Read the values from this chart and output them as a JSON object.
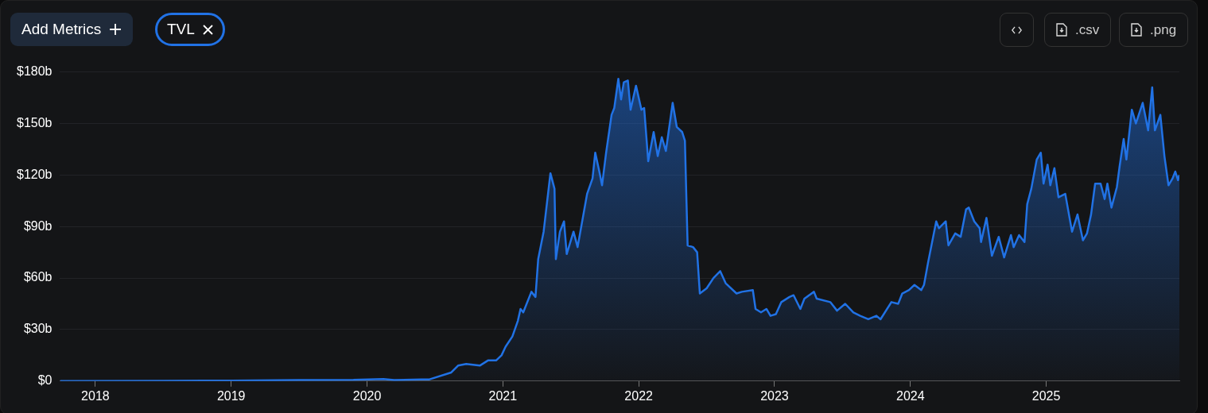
{
  "chart_data": {
    "type": "area",
    "annotations": [
      "Add Metrics",
      ".csv",
      ".png"
    ],
    "legend": "top left",
    "grid": "y",
    "xlim": [
      2017.74,
      2025.98
    ],
    "xticks": [
      2018,
      2019,
      2020,
      2021,
      2022,
      2023,
      2024,
      2025
    ],
    "ylim": [
      0,
      180
    ],
    "yticks": [
      {
        "value": 0,
        "label": "$0"
      },
      {
        "value": 30,
        "label": "$30b"
      },
      {
        "value": 60,
        "label": "$60b"
      },
      {
        "value": 90,
        "label": "$90b"
      },
      {
        "value": 120,
        "label": "$120b"
      },
      {
        "value": 150,
        "label": "$150b"
      },
      {
        "value": 180,
        "label": "$180b"
      }
    ],
    "x": [
      2017.74,
      2018.5,
      2019.0,
      2019.5,
      2019.9,
      2020.12,
      2020.2,
      2020.4,
      2020.46,
      2020.62,
      2020.67,
      2020.73,
      2020.83,
      2020.89,
      2020.95,
      2020.99,
      2021.02,
      2021.07,
      2021.11,
      2021.13,
      2021.15,
      2021.21,
      2021.24,
      2021.26,
      2021.3,
      2021.35,
      2021.38,
      2021.39,
      2021.42,
      2021.45,
      2021.47,
      2021.52,
      2021.55,
      2021.62,
      2021.66,
      2021.68,
      2021.71,
      2021.73,
      2021.76,
      2021.8,
      2021.82,
      2021.85,
      2021.87,
      2021.89,
      2021.92,
      2021.94,
      2021.98,
      2022.02,
      2022.04,
      2022.07,
      2022.11,
      2022.14,
      2022.17,
      2022.2,
      2022.25,
      2022.28,
      2022.32,
      2022.34,
      2022.36,
      2022.4,
      2022.43,
      2022.45,
      2022.5,
      2022.55,
      2022.6,
      2022.64,
      2022.72,
      2022.76,
      2022.84,
      2022.86,
      2022.9,
      2022.94,
      2022.97,
      2023.01,
      2023.05,
      2023.11,
      2023.14,
      2023.19,
      2023.22,
      2023.29,
      2023.31,
      2023.41,
      2023.46,
      2023.52,
      2023.58,
      2023.63,
      2023.69,
      2023.75,
      2023.78,
      2023.86,
      2023.91,
      2023.94,
      2023.99,
      2024.03,
      2024.08,
      2024.1,
      2024.13,
      2024.19,
      2024.21,
      2024.26,
      2024.28,
      2024.33,
      2024.37,
      2024.41,
      2024.43,
      2024.47,
      2024.51,
      2024.52,
      2024.56,
      2024.6,
      2024.65,
      2024.69,
      2024.74,
      2024.76,
      2024.8,
      2024.84,
      2024.86,
      2024.89,
      2024.93,
      2024.96,
      2024.98,
      2025.01,
      2025.03,
      2025.06,
      2025.09,
      2025.14,
      2025.19,
      2025.23,
      2025.27,
      2025.3,
      2025.33,
      2025.36,
      2025.4,
      2025.43,
      2025.45,
      2025.48,
      2025.52,
      2025.54,
      2025.57,
      2025.59,
      2025.63,
      2025.66,
      2025.71,
      2025.75,
      2025.78,
      2025.8,
      2025.84,
      2025.87,
      2025.9,
      2025.93,
      2025.95,
      2025.97,
      2025.98
    ],
    "series": [
      {
        "name": "TVL",
        "color": "#2172e5",
        "values": [
          0,
          0.1,
          0.3,
          0.6,
          0.7,
          1.2,
          0.6,
          1,
          1,
          5,
          9,
          10,
          9,
          12,
          12,
          15,
          20,
          26,
          35,
          42,
          40,
          52,
          49,
          71,
          87,
          121,
          112,
          71,
          87,
          93,
          74,
          87,
          78,
          109,
          118,
          133,
          122,
          114,
          133,
          155,
          159,
          176,
          164,
          174,
          175,
          158,
          172,
          158,
          159,
          128,
          145,
          131,
          142,
          134,
          162,
          148,
          145,
          140,
          79,
          78,
          75,
          51,
          54,
          60,
          64,
          57,
          51,
          52,
          53,
          42,
          40,
          42,
          38,
          39,
          46,
          49,
          50,
          42,
          48,
          52,
          48,
          46,
          41,
          45,
          40,
          38,
          36,
          38,
          36,
          46,
          45,
          51,
          53,
          56,
          53,
          56,
          69,
          93,
          89,
          93,
          79,
          86,
          84,
          100,
          101,
          93,
          89,
          81,
          95,
          73,
          84,
          72,
          85,
          78,
          85,
          81,
          103,
          112,
          129,
          133,
          115,
          126,
          114,
          124,
          107,
          109,
          87,
          97,
          82,
          86,
          97,
          115,
          115,
          106,
          115,
          101,
          113,
          125,
          141,
          129,
          158,
          150,
          162,
          146,
          171,
          146,
          155,
          131,
          114,
          118,
          122,
          117,
          120
        ]
      }
    ]
  }
}
